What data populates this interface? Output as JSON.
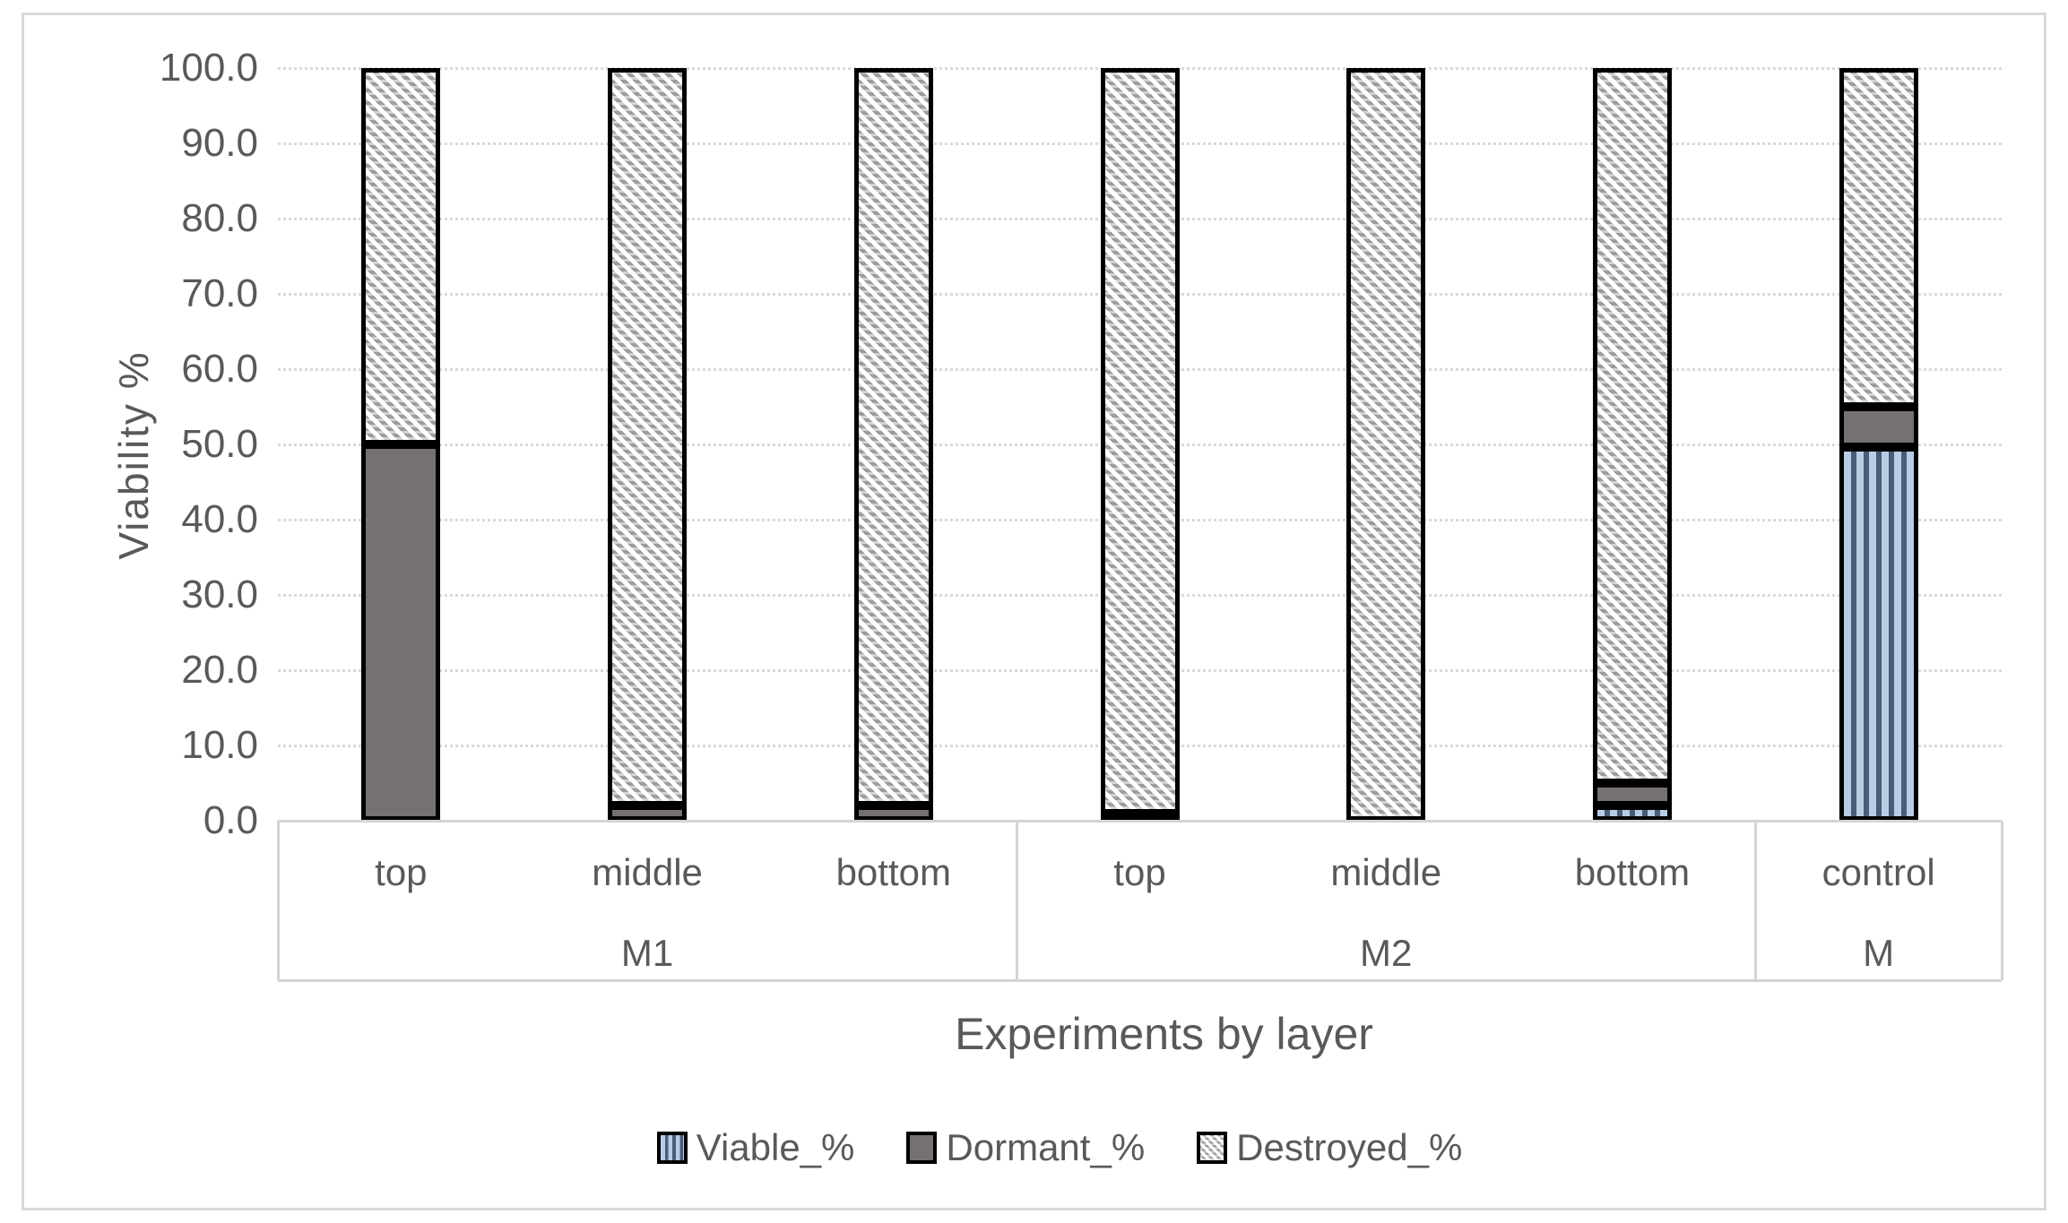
{
  "chart_data": {
    "type": "bar",
    "stacked": true,
    "orientation": "vertical",
    "title": "",
    "ylabel": "Viability %",
    "xlabel": "Experiments by layer",
    "ylim": [
      0,
      100
    ],
    "ytick_step": 10,
    "ytick_decimals": 1,
    "grid": true,
    "legend_position": "bottom",
    "groups": [
      {
        "label": "M1",
        "categories": [
          "top",
          "middle",
          "bottom"
        ]
      },
      {
        "label": "M2",
        "categories": [
          "top",
          "middle",
          "bottom"
        ]
      },
      {
        "label": "M",
        "categories": [
          "control"
        ]
      }
    ],
    "series": [
      {
        "name": "Viable_%",
        "pattern": "vertical-stripes",
        "colors": [
          "#b8cce4",
          "#4a5c78"
        ],
        "values": [
          0,
          0,
          0,
          1.0,
          0,
          2.0,
          49.7
        ]
      },
      {
        "name": "Dormant_%",
        "pattern": "solid",
        "colors": [
          "#767171"
        ],
        "values": [
          50.0,
          2.0,
          2.0,
          0,
          0,
          3.0,
          5.3
        ]
      },
      {
        "name": "Destroyed_%",
        "pattern": "diagonal-hatch",
        "colors": [
          "#ffffff",
          "#9c9c9c"
        ],
        "values": [
          50.0,
          98.0,
          98.0,
          99.0,
          100.0,
          95.0,
          45.0
        ]
      }
    ]
  },
  "style": {
    "text_color": "#595959",
    "gridline_color": "#d9d9d9",
    "band_line_color": "#d4d4d4",
    "bar_border_color": "#000000",
    "frame_border_color": "#d9d9d9",
    "background": "#ffffff"
  }
}
